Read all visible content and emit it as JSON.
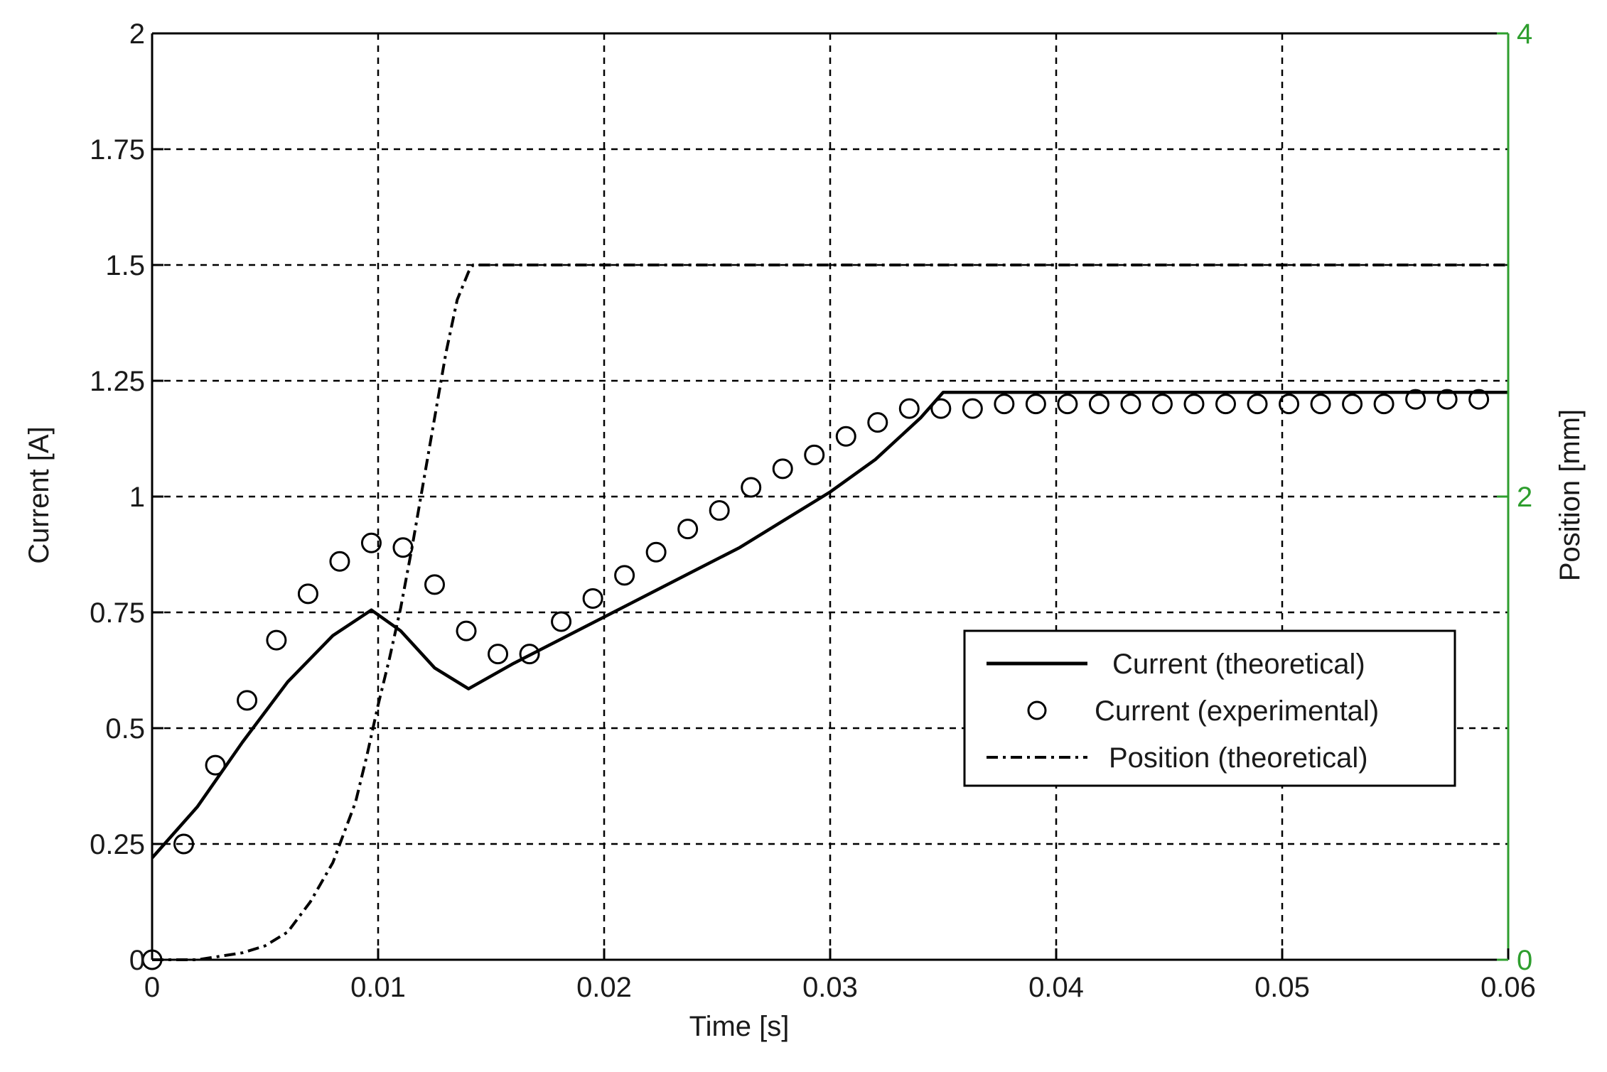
{
  "chart_data": {
    "type": "line",
    "title": "",
    "xlabel": "Time [s]",
    "ylabel": "Current [A]",
    "y2label": "Position [mm]",
    "xlim": [
      0,
      0.06
    ],
    "ylim": [
      0,
      2
    ],
    "y2lim": [
      0,
      4
    ],
    "grid": true,
    "legend_position": "lower-right",
    "colors": {
      "axis": "#000000",
      "right_axis": "#2e9e2e",
      "grid": "#000000",
      "series": "#000000"
    },
    "x_ticks": [
      0,
      0.01,
      0.02,
      0.03,
      0.04,
      0.05,
      0.06
    ],
    "x_tick_labels": [
      "0",
      "0.01",
      "0.02",
      "0.03",
      "0.04",
      "0.05",
      "0.06"
    ],
    "y_ticks": [
      0,
      0.25,
      0.5,
      0.75,
      1,
      1.25,
      1.5,
      1.75,
      2
    ],
    "y_tick_labels": [
      "0",
      "0.25",
      "0.5",
      "0.75",
      "1",
      "1.25",
      "1.5",
      "1.75",
      "2"
    ],
    "y2_ticks": [
      0,
      2,
      4
    ],
    "y2_tick_labels": [
      "0",
      "2",
      "4"
    ],
    "series": [
      {
        "name": "Current (theoretical)",
        "style": "solid-line",
        "axis": "left",
        "x": [
          0,
          0.002,
          0.004,
          0.006,
          0.008,
          0.0097,
          0.011,
          0.0125,
          0.014,
          0.016,
          0.018,
          0.02,
          0.022,
          0.024,
          0.026,
          0.028,
          0.03,
          0.032,
          0.034,
          0.035,
          0.04,
          0.05,
          0.06
        ],
        "y": [
          0.22,
          0.33,
          0.47,
          0.6,
          0.7,
          0.755,
          0.71,
          0.63,
          0.585,
          0.64,
          0.69,
          0.74,
          0.79,
          0.84,
          0.89,
          0.95,
          1.01,
          1.08,
          1.17,
          1.225,
          1.225,
          1.225,
          1.225
        ]
      },
      {
        "name": "Current (experimental)",
        "style": "open-circle",
        "axis": "left",
        "x": [
          0,
          0.0014,
          0.0028,
          0.0042,
          0.0055,
          0.0069,
          0.0083,
          0.0097,
          0.0111,
          0.0125,
          0.0139,
          0.0153,
          0.0167,
          0.0181,
          0.0195,
          0.0209,
          0.0223,
          0.0237,
          0.0251,
          0.0265,
          0.0279,
          0.0293,
          0.0307,
          0.0321,
          0.0335,
          0.0349,
          0.0363,
          0.0377,
          0.0391,
          0.0405,
          0.0419,
          0.0433,
          0.0447,
          0.0461,
          0.0475,
          0.0489,
          0.0503,
          0.0517,
          0.0531,
          0.0545,
          0.0559,
          0.0573,
          0.0587
        ],
        "y": [
          0.0,
          0.25,
          0.42,
          0.56,
          0.69,
          0.79,
          0.86,
          0.9,
          0.89,
          0.81,
          0.71,
          0.66,
          0.66,
          0.73,
          0.78,
          0.83,
          0.88,
          0.93,
          0.97,
          1.02,
          1.06,
          1.09,
          1.13,
          1.16,
          1.19,
          1.19,
          1.19,
          1.2,
          1.2,
          1.2,
          1.2,
          1.2,
          1.2,
          1.2,
          1.2,
          1.2,
          1.2,
          1.2,
          1.2,
          1.2,
          1.21,
          1.21,
          1.21
        ]
      },
      {
        "name": "Position (theoretical)",
        "style": "dash-dot-line",
        "axis": "right",
        "x": [
          0,
          0.002,
          0.004,
          0.005,
          0.006,
          0.007,
          0.008,
          0.009,
          0.0095,
          0.01,
          0.0105,
          0.011,
          0.0115,
          0.012,
          0.0125,
          0.013,
          0.0135,
          0.014,
          0.0142,
          0.02,
          0.03,
          0.04,
          0.05,
          0.06
        ],
        "y": [
          0,
          0,
          0.03,
          0.06,
          0.12,
          0.25,
          0.42,
          0.68,
          0.88,
          1.1,
          1.3,
          1.52,
          1.78,
          2.06,
          2.34,
          2.62,
          2.85,
          2.97,
          3.0,
          3.0,
          3.0,
          3.0,
          3.0,
          3.0
        ]
      }
    ]
  }
}
